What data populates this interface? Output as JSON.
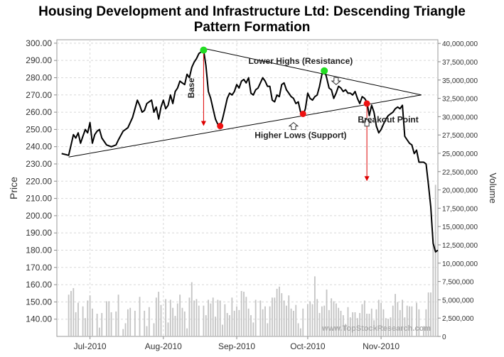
{
  "title_lines": [
    "Housing Development and Infrastructure Ltd: Descending Triangle",
    "Pattern Formation"
  ],
  "watermark": "www.TopStockResearch.com",
  "colors": {
    "price_line": "#000000",
    "volume_bar": "#c4c4c4",
    "grid": "#d8d8d8",
    "green_marker": "#22dd22",
    "red_marker": "#ee1111",
    "red_arrow": "#dd0000"
  },
  "chart_data": {
    "type": "line",
    "title": "Housing Development and Infrastructure Ltd: Descending Triangle Pattern Formation",
    "xlabel": "",
    "ylabel": "Price",
    "y2label": "Volume",
    "ylim": [
      130,
      302
    ],
    "y2lim": [
      0,
      40500000
    ],
    "yticks": [
      "140.00",
      "150.00",
      "160.00",
      "170.00",
      "180.00",
      "190.00",
      "200.00",
      "210.00",
      "220.00",
      "230.00",
      "240.00",
      "250.00",
      "260.00",
      "270.00",
      "280.00",
      "290.00",
      "300.00"
    ],
    "y2ticks": [
      "0",
      "2,500,000",
      "5,000,000",
      "7,500,000",
      "10,000,000",
      "12,500,000",
      "15,000,000",
      "17,500,000",
      "20,000,000",
      "22,500,000",
      "25,000,000",
      "27,500,000",
      "30,000,000",
      "32,500,000",
      "35,000,000",
      "37,500,000",
      "40,000,000"
    ],
    "xticks": [
      {
        "label": "Jul-2010",
        "day": 12
      },
      {
        "label": "Aug-2010",
        "day": 43
      },
      {
        "label": "Sep-2010",
        "day": 74
      },
      {
        "label": "Oct-2010",
        "day": 104
      },
      {
        "label": "Nov-2010",
        "day": 135
      }
    ],
    "xrange": [
      -2,
      159
    ],
    "price_series": [
      [
        0,
        236
      ],
      [
        3,
        235
      ],
      [
        5,
        247
      ],
      [
        6,
        245
      ],
      [
        7,
        248
      ],
      [
        8,
        242
      ],
      [
        9,
        246
      ],
      [
        10,
        250
      ],
      [
        11,
        248
      ],
      [
        12,
        254
      ],
      [
        13,
        242
      ],
      [
        14,
        247
      ],
      [
        15,
        249
      ],
      [
        16,
        250
      ],
      [
        17,
        245
      ],
      [
        19,
        241
      ],
      [
        21,
        240
      ],
      [
        23,
        241
      ],
      [
        24,
        244
      ],
      [
        26,
        249
      ],
      [
        28,
        251
      ],
      [
        30,
        257
      ],
      [
        31,
        262
      ],
      [
        32,
        267
      ],
      [
        33,
        264
      ],
      [
        34,
        260
      ],
      [
        35,
        261
      ],
      [
        36,
        265
      ],
      [
        38,
        267
      ],
      [
        39,
        260
      ],
      [
        40,
        263
      ],
      [
        41,
        256
      ],
      [
        42,
        263
      ],
      [
        43,
        267
      ],
      [
        44,
        262
      ],
      [
        45,
        264
      ],
      [
        46,
        270
      ],
      [
        47,
        265
      ],
      [
        48,
        272
      ],
      [
        49,
        274
      ],
      [
        50,
        278
      ],
      [
        51,
        277
      ],
      [
        52,
        276
      ],
      [
        53,
        282
      ],
      [
        54,
        280
      ],
      [
        55,
        286
      ],
      [
        56,
        289
      ],
      [
        57,
        291
      ],
      [
        58,
        294
      ],
      [
        59,
        295
      ],
      [
        60,
        296
      ],
      [
        61,
        287
      ],
      [
        62,
        272
      ],
      [
        63,
        268
      ],
      [
        64,
        262
      ],
      [
        65,
        256
      ],
      [
        66,
        253
      ],
      [
        67,
        252
      ],
      [
        68,
        256
      ],
      [
        69,
        262
      ],
      [
        70,
        268
      ],
      [
        71,
        271
      ],
      [
        72,
        270
      ],
      [
        73,
        272
      ],
      [
        74,
        276
      ],
      [
        75,
        274
      ],
      [
        76,
        278
      ],
      [
        77,
        279
      ],
      [
        78,
        277
      ],
      [
        79,
        280
      ],
      [
        80,
        271
      ],
      [
        81,
        270
      ],
      [
        82,
        273
      ],
      [
        83,
        274
      ],
      [
        84,
        277
      ],
      [
        85,
        280
      ],
      [
        86,
        278
      ],
      [
        87,
        275
      ],
      [
        88,
        275
      ],
      [
        89,
        267
      ],
      [
        90,
        266
      ],
      [
        91,
        270
      ],
      [
        92,
        269
      ],
      [
        93,
        276
      ],
      [
        94,
        277
      ],
      [
        95,
        273
      ],
      [
        96,
        271
      ],
      [
        97,
        269
      ],
      [
        98,
        268
      ],
      [
        99,
        265
      ],
      [
        100,
        266
      ],
      [
        101,
        260
      ],
      [
        102,
        258
      ],
      [
        103,
        262
      ],
      [
        104,
        271
      ],
      [
        105,
        268
      ],
      [
        106,
        267
      ],
      [
        107,
        269
      ],
      [
        108,
        270
      ],
      [
        109,
        275
      ],
      [
        110,
        282
      ],
      [
        111,
        285
      ],
      [
        112,
        280
      ],
      [
        113,
        274
      ],
      [
        114,
        273
      ],
      [
        115,
        268
      ],
      [
        116,
        271
      ],
      [
        117,
        275
      ],
      [
        118,
        274
      ],
      [
        119,
        272
      ],
      [
        120,
        273
      ],
      [
        121,
        271
      ],
      [
        122,
        271
      ],
      [
        123,
        270
      ],
      [
        124,
        272
      ],
      [
        125,
        268
      ],
      [
        126,
        265
      ],
      [
        127,
        269
      ],
      [
        128,
        268
      ],
      [
        129,
        266
      ],
      [
        130,
        258
      ],
      [
        131,
        264
      ],
      [
        132,
        260
      ],
      [
        133,
        252
      ],
      [
        134,
        248
      ],
      [
        135,
        250
      ],
      [
        136,
        253
      ],
      [
        137,
        256
      ],
      [
        138,
        258
      ],
      [
        139,
        259
      ],
      [
        140,
        260
      ],
      [
        141,
        262
      ],
      [
        142,
        263
      ],
      [
        143,
        262
      ],
      [
        144,
        264
      ],
      [
        145,
        246
      ],
      [
        146,
        244
      ],
      [
        147,
        242
      ],
      [
        148,
        241
      ],
      [
        149,
        236
      ],
      [
        150,
        238
      ],
      [
        151,
        231
      ],
      [
        152,
        231
      ],
      [
        153,
        231
      ],
      [
        154,
        230
      ],
      [
        155,
        218
      ],
      [
        156,
        205
      ],
      [
        157,
        184
      ],
      [
        158,
        179
      ],
      [
        159,
        180
      ]
    ],
    "volume_series": [
      [
        3,
        5.7
      ],
      [
        4,
        6.2
      ],
      [
        5,
        6.6
      ],
      [
        6,
        3.3
      ],
      [
        7,
        4.6
      ],
      [
        9,
        4.1
      ],
      [
        10,
        2.5
      ],
      [
        11,
        4.9
      ],
      [
        12,
        5.6
      ],
      [
        13,
        3.8
      ],
      [
        15,
        3.1
      ],
      [
        16,
        1.2
      ],
      [
        17,
        3.2
      ],
      [
        19,
        4.8
      ],
      [
        20,
        4.8
      ],
      [
        21,
        3.3
      ],
      [
        23,
        3.4
      ],
      [
        24,
        5.7
      ],
      [
        26,
        1.0
      ],
      [
        27,
        1.8
      ],
      [
        28,
        3.7
      ],
      [
        29,
        3.9
      ],
      [
        31,
        3.5
      ],
      [
        33,
        5.4
      ],
      [
        35,
        3.5
      ],
      [
        36,
        1.4
      ],
      [
        37,
        4.0
      ],
      [
        39,
        1.8
      ],
      [
        40,
        5.3
      ],
      [
        41,
        6.1
      ],
      [
        42,
        4.3
      ],
      [
        44,
        5.1
      ],
      [
        45,
        1.9
      ],
      [
        46,
        5.0
      ],
      [
        47,
        3.9
      ],
      [
        48,
        2.8
      ],
      [
        49,
        4.5
      ],
      [
        50,
        5.7
      ],
      [
        51,
        3.9
      ],
      [
        52,
        3.4
      ],
      [
        53,
        1.1
      ],
      [
        54,
        5.3
      ],
      [
        55,
        7.4
      ],
      [
        56,
        4.9
      ],
      [
        57,
        5.1
      ],
      [
        58,
        4.2
      ],
      [
        60,
        4.2
      ],
      [
        61,
        2.9
      ],
      [
        62,
        5.0
      ],
      [
        63,
        4.5
      ],
      [
        64,
        5.3
      ],
      [
        65,
        2.7
      ],
      [
        66,
        5.0
      ],
      [
        67,
        4.9
      ],
      [
        68,
        1.6
      ],
      [
        69,
        4.4
      ],
      [
        70,
        3.2
      ],
      [
        71,
        2.9
      ],
      [
        72,
        5.3
      ],
      [
        73,
        3.5
      ],
      [
        74,
        4.1
      ],
      [
        75,
        3.6
      ],
      [
        76,
        6.2
      ],
      [
        77,
        6.1
      ],
      [
        78,
        5.4
      ],
      [
        79,
        3.8
      ],
      [
        80,
        2.9
      ],
      [
        81,
        1.9
      ],
      [
        82,
        5.0
      ],
      [
        84,
        4.9
      ],
      [
        85,
        3.7
      ],
      [
        86,
        4.1
      ],
      [
        87,
        1.8
      ],
      [
        88,
        4.1
      ],
      [
        89,
        5.3
      ],
      [
        90,
        5.3
      ],
      [
        91,
        6.5
      ],
      [
        92,
        6.8
      ],
      [
        93,
        5.9
      ],
      [
        94,
        4.9
      ],
      [
        95,
        4.2
      ],
      [
        96,
        5.6
      ],
      [
        97,
        3.8
      ],
      [
        98,
        3.5
      ],
      [
        99,
        4.3
      ],
      [
        100,
        1.8
      ],
      [
        101,
        1.1
      ],
      [
        102,
        3.8
      ],
      [
        104,
        4.4
      ],
      [
        105,
        4.8
      ],
      [
        106,
        4.4
      ],
      [
        107,
        8.2
      ],
      [
        108,
        5.1
      ],
      [
        109,
        3.2
      ],
      [
        110,
        4.1
      ],
      [
        111,
        4.2
      ],
      [
        112,
        6.4
      ],
      [
        113,
        3.6
      ],
      [
        114,
        5.2
      ],
      [
        115,
        4.8
      ],
      [
        116,
        4.5
      ],
      [
        117,
        3.9
      ],
      [
        118,
        3.5
      ],
      [
        119,
        2.9
      ],
      [
        120,
        1.7
      ],
      [
        121,
        4.0
      ],
      [
        122,
        2.6
      ],
      [
        123,
        3.3
      ],
      [
        124,
        3.3
      ],
      [
        125,
        2.5
      ],
      [
        126,
        3.2
      ],
      [
        127,
        4.4
      ],
      [
        128,
        4.9
      ],
      [
        129,
        3.1
      ],
      [
        130,
        3.1
      ],
      [
        131,
        3.8
      ],
      [
        132,
        2.2
      ],
      [
        133,
        3.7
      ],
      [
        134,
        5.0
      ],
      [
        135,
        4.6
      ],
      [
        136,
        3.7
      ],
      [
        137,
        2.5
      ],
      [
        138,
        2.4
      ],
      [
        139,
        2.6
      ],
      [
        140,
        4.2
      ],
      [
        141,
        5.8
      ],
      [
        142,
        4.7
      ],
      [
        143,
        3.6
      ],
      [
        144,
        5.0
      ],
      [
        145,
        2.6
      ],
      [
        146,
        4.2
      ],
      [
        147,
        4.1
      ],
      [
        148,
        4.1
      ],
      [
        150,
        4.6
      ],
      [
        151,
        3.7
      ],
      [
        153,
        1.4
      ],
      [
        154,
        3.7
      ],
      [
        155,
        6.0
      ],
      [
        156,
        6.0
      ],
      [
        157,
        12.7
      ],
      [
        158,
        20.7
      ]
    ],
    "volume_unit": "millions",
    "trendlines": [
      {
        "name": "resistance",
        "from": [
          60,
          297
        ],
        "to": [
          152,
          270
        ]
      },
      {
        "name": "support",
        "from": [
          3,
          234
        ],
        "to": [
          152,
          270
        ]
      }
    ],
    "markers": [
      {
        "name": "high-1",
        "color": "green",
        "x": 60,
        "y": 296
      },
      {
        "name": "high-2",
        "color": "green",
        "x": 111,
        "y": 284
      },
      {
        "name": "low-1",
        "color": "red",
        "x": 67,
        "y": 252
      },
      {
        "name": "low-2",
        "color": "red",
        "x": 102,
        "y": 259
      },
      {
        "name": "breakout",
        "color": "red",
        "x": 129,
        "y": 265
      }
    ],
    "red_arrows": [
      {
        "name": "base-arrow",
        "x": 60,
        "from": 296,
        "to": 252
      },
      {
        "name": "target-arrow",
        "x": 129,
        "from": 265,
        "to": 220
      }
    ],
    "hollow_arrows": [
      {
        "name": "resistance-pointer",
        "x": 116,
        "y": 276,
        "dir": "down"
      },
      {
        "name": "support-pointer-1",
        "x": 98,
        "y": 254,
        "dir": "up"
      },
      {
        "name": "support-pointer-2",
        "x": 129,
        "y": 256,
        "dir": "up"
      }
    ],
    "annotations": [
      {
        "name": "lower-highs-label",
        "text": "Lower Highs (Resistance)",
        "x": 101,
        "y": 288
      },
      {
        "name": "higher-lows-label",
        "text": "Higher Lows (Support)",
        "x": 101,
        "y": 245
      },
      {
        "name": "breakout-label",
        "text": "Breakout Point",
        "x": 138,
        "y": 254
      },
      {
        "name": "base-label",
        "text": "Base",
        "x": 56,
        "y": 274,
        "rotated": true
      }
    ]
  }
}
